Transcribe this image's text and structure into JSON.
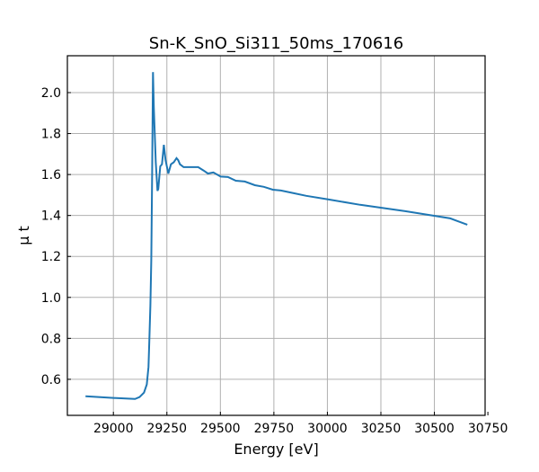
{
  "chart_data": {
    "type": "line",
    "title": "Sn-K_SnO_Si311_50ms_170616",
    "xlabel": "Energy [eV]",
    "ylabel": "μ t",
    "xlim": [
      28785,
      30737
    ],
    "ylim": [
      0.424,
      2.18
    ],
    "grid": true,
    "xticks": [
      29000,
      29250,
      29500,
      29750,
      30000,
      30250,
      30500,
      30750
    ],
    "yticks": [
      0.6,
      0.8,
      1.0,
      1.2,
      1.4,
      1.6,
      1.8,
      2.0
    ],
    "ytick_labels": [
      "0.6",
      "0.8",
      "1.0",
      "1.2",
      "1.4",
      "1.6",
      "1.8",
      "2.0"
    ],
    "series": [
      {
        "name": "Sn-K_SnO_Si311_50ms_170616",
        "color": "#1f77b4",
        "x": [
          28870,
          29000,
          29101,
          29122,
          29143,
          29156,
          29164,
          29168,
          29173,
          29177,
          29181,
          29185,
          29189,
          29198,
          29206,
          29210,
          29219,
          29227,
          29236,
          29244,
          29257,
          29269,
          29282,
          29295,
          29303,
          29311,
          29328,
          29396,
          29421,
          29442,
          29467,
          29501,
          29535,
          29572,
          29614,
          29661,
          29703,
          29745,
          29783,
          29838,
          29901,
          30006,
          30153,
          30364,
          30574,
          30654
        ],
        "y": [
          0.517,
          0.509,
          0.504,
          0.513,
          0.535,
          0.575,
          0.66,
          0.785,
          0.96,
          1.18,
          1.575,
          2.1,
          1.93,
          1.66,
          1.52,
          1.53,
          1.64,
          1.65,
          1.745,
          1.67,
          1.605,
          1.65,
          1.66,
          1.68,
          1.67,
          1.65,
          1.636,
          1.636,
          1.62,
          1.605,
          1.61,
          1.59,
          1.588,
          1.57,
          1.566,
          1.548,
          1.54,
          1.526,
          1.522,
          1.51,
          1.496,
          1.478,
          1.452,
          1.421,
          1.386,
          1.355
        ]
      }
    ]
  }
}
